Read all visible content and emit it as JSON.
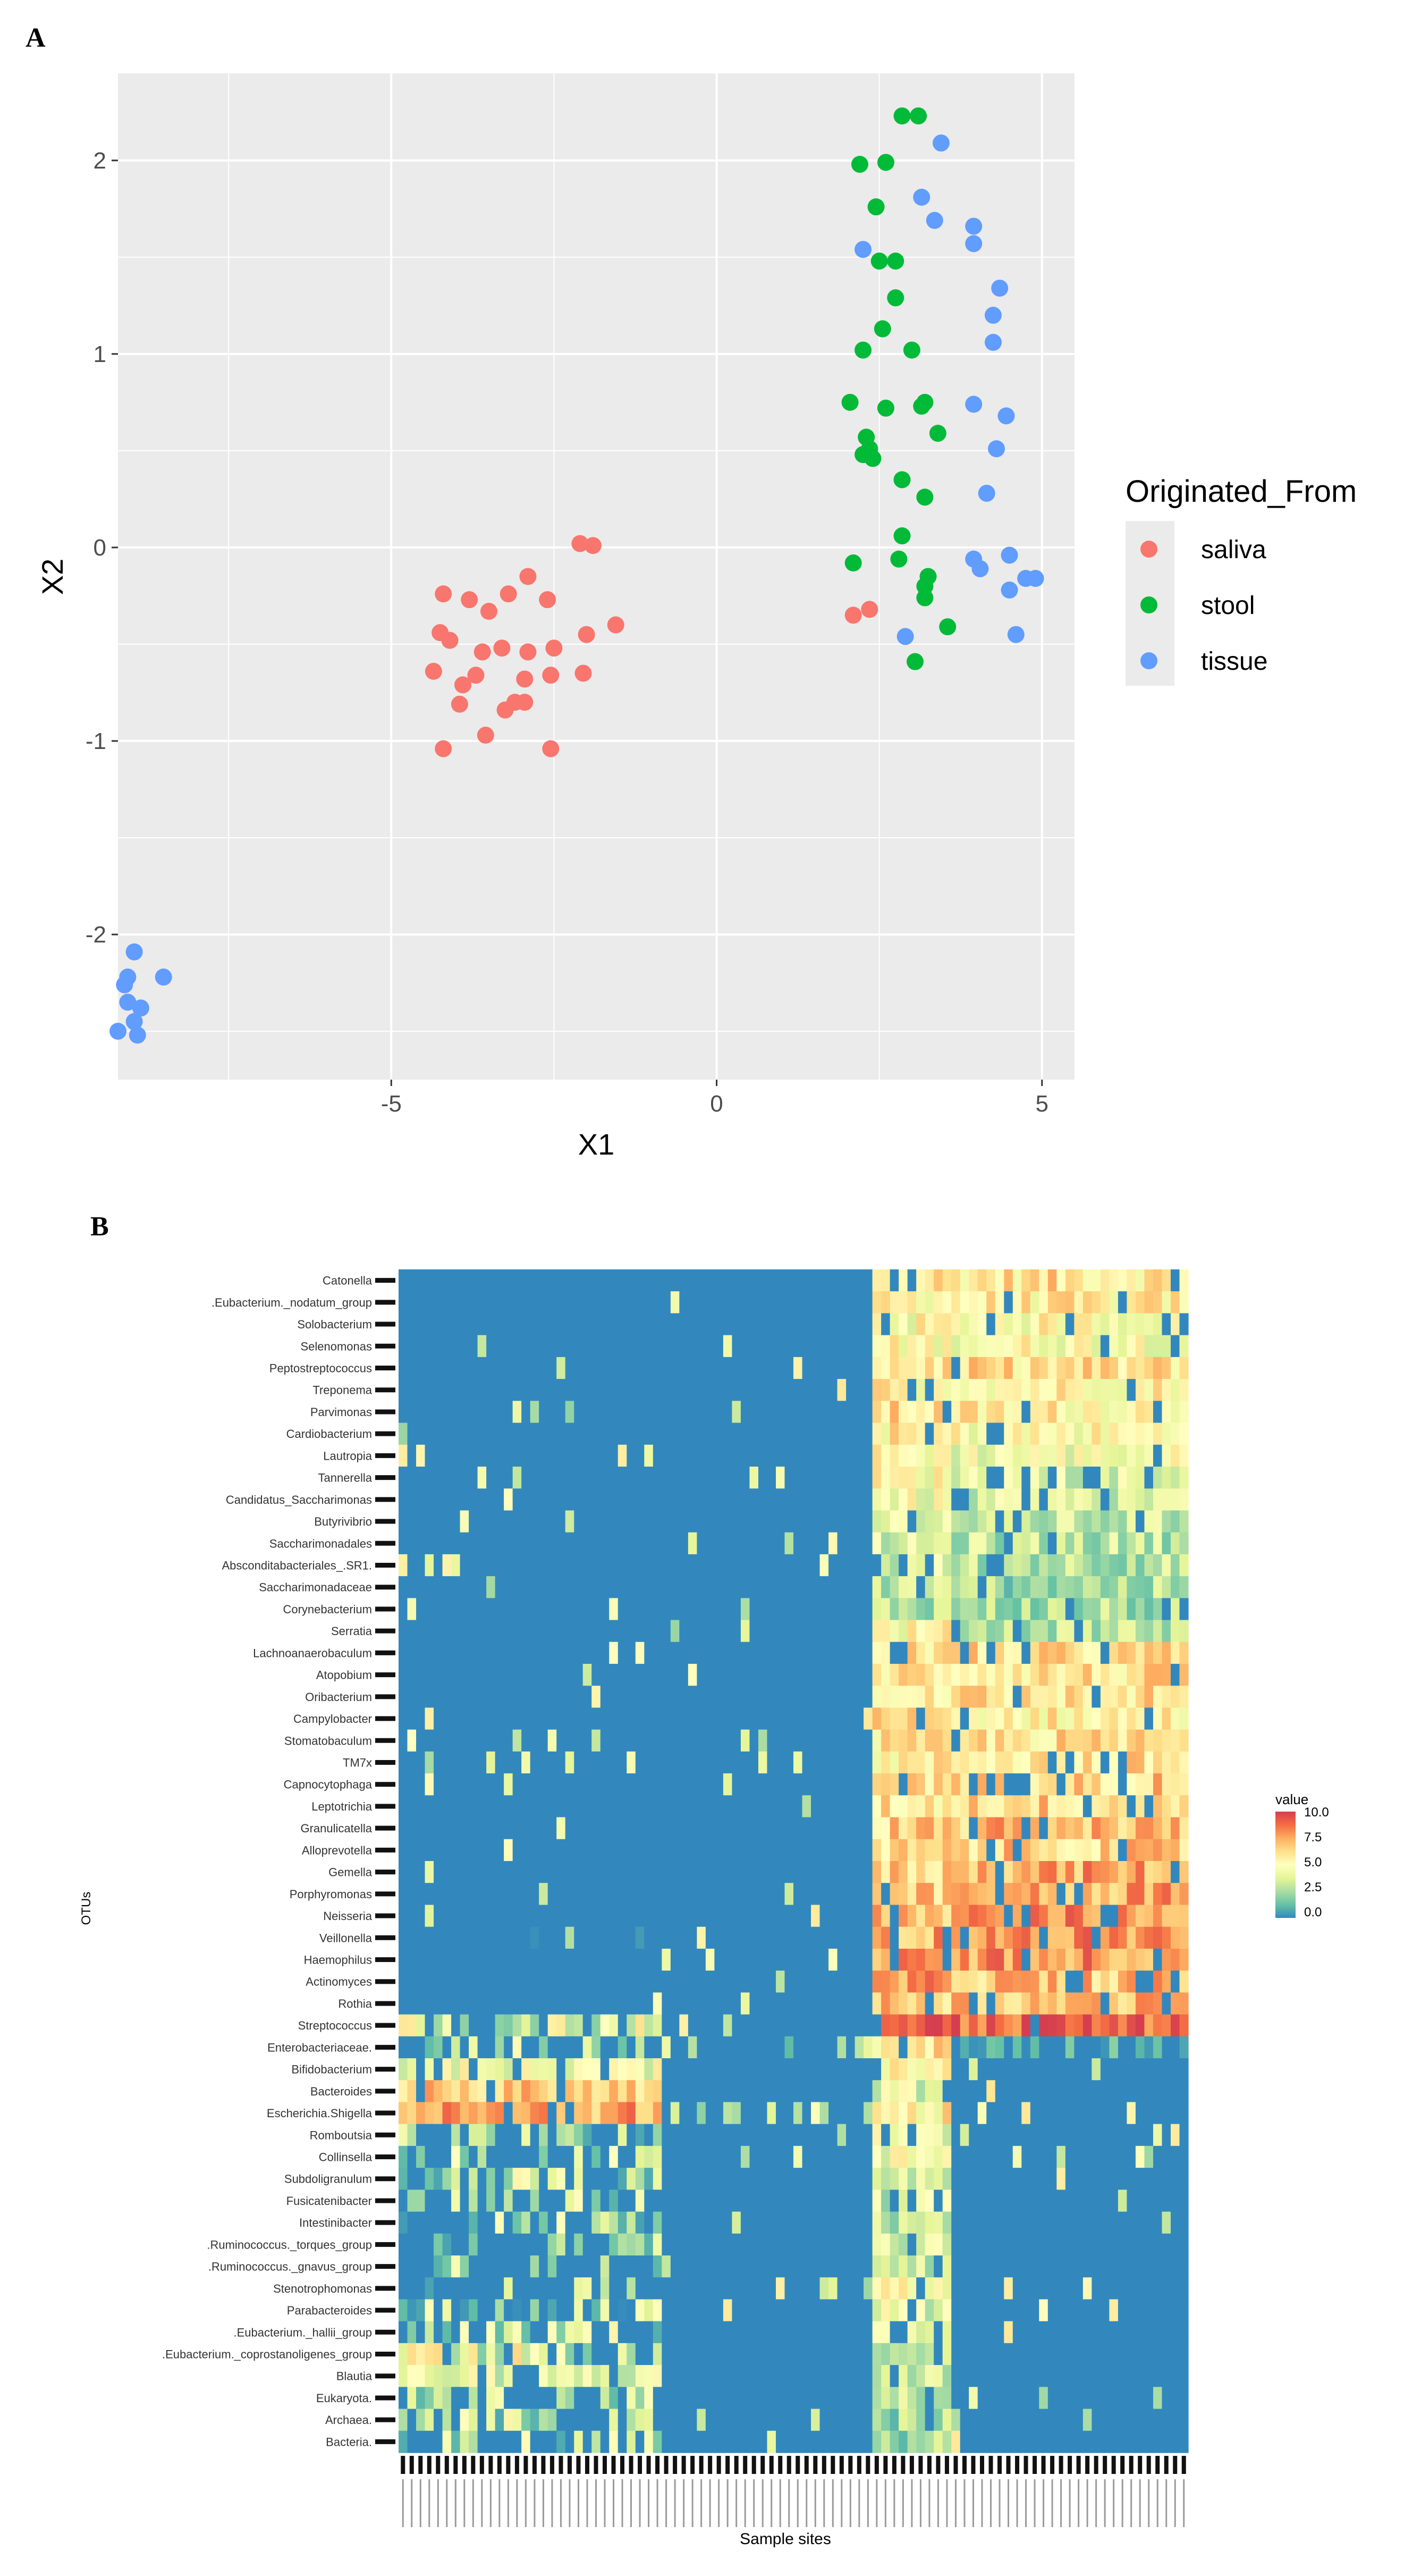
{
  "panels": {
    "a_label": "A",
    "b_label": "B"
  },
  "chart_data": [
    {
      "type": "scatter",
      "xlabel": "X1",
      "ylabel": "X2",
      "xlim": [
        -9.2,
        5.5
      ],
      "ylim": [
        -2.75,
        2.45
      ],
      "xticks": [
        -5,
        0,
        5
      ],
      "xtick_labels": [
        "-5",
        "0",
        "5"
      ],
      "yticks": [
        -2,
        -1,
        0,
        1,
        2
      ],
      "ytick_labels": [
        "-2",
        "-1",
        "0",
        "1",
        "2"
      ],
      "grid": true,
      "legend": {
        "title": "Originated_From",
        "position": "right"
      },
      "series": [
        {
          "name": "saliva",
          "color": "#F8766D",
          "points": [
            [
              -2.1,
              0.02
            ],
            [
              -1.9,
              0.01
            ],
            [
              -4.2,
              -0.24
            ],
            [
              -3.8,
              -0.27
            ],
            [
              -2.9,
              -0.15
            ],
            [
              -3.2,
              -0.24
            ],
            [
              -2.6,
              -0.27
            ],
            [
              -3.5,
              -0.33
            ],
            [
              -4.25,
              -0.44
            ],
            [
              -4.1,
              -0.48
            ],
            [
              -2.0,
              -0.45
            ],
            [
              -1.55,
              -0.4
            ],
            [
              -3.6,
              -0.54
            ],
            [
              -3.3,
              -0.52
            ],
            [
              -2.5,
              -0.52
            ],
            [
              -2.9,
              -0.54
            ],
            [
              -4.35,
              -0.64
            ],
            [
              -3.7,
              -0.66
            ],
            [
              -3.9,
              -0.71
            ],
            [
              -2.95,
              -0.68
            ],
            [
              -2.55,
              -0.66
            ],
            [
              -2.05,
              -0.65
            ],
            [
              -3.95,
              -0.81
            ],
            [
              -3.1,
              -0.8
            ],
            [
              -2.95,
              -0.8
            ],
            [
              -3.25,
              -0.84
            ],
            [
              -3.55,
              -0.97
            ],
            [
              -4.2,
              -1.04
            ],
            [
              -2.55,
              -1.04
            ],
            [
              2.1,
              -0.35
            ],
            [
              2.35,
              -0.32
            ]
          ]
        },
        {
          "name": "stool",
          "color": "#00BA38",
          "points": [
            [
              2.85,
              2.23
            ],
            [
              3.1,
              2.23
            ],
            [
              2.2,
              1.98
            ],
            [
              2.6,
              1.99
            ],
            [
              2.45,
              1.76
            ],
            [
              2.5,
              1.48
            ],
            [
              2.75,
              1.48
            ],
            [
              2.75,
              1.29
            ],
            [
              2.55,
              1.13
            ],
            [
              2.25,
              1.02
            ],
            [
              3.0,
              1.02
            ],
            [
              2.05,
              0.75
            ],
            [
              2.6,
              0.72
            ],
            [
              3.15,
              0.73
            ],
            [
              3.2,
              0.75
            ],
            [
              2.3,
              0.57
            ],
            [
              2.35,
              0.51
            ],
            [
              3.4,
              0.59
            ],
            [
              2.25,
              0.48
            ],
            [
              2.4,
              0.46
            ],
            [
              2.85,
              0.35
            ],
            [
              3.2,
              0.26
            ],
            [
              2.85,
              0.06
            ],
            [
              2.1,
              -0.08
            ],
            [
              2.8,
              -0.06
            ],
            [
              3.25,
              -0.15
            ],
            [
              3.2,
              -0.2
            ],
            [
              3.2,
              -0.26
            ],
            [
              3.55,
              -0.41
            ],
            [
              3.05,
              -0.59
            ]
          ]
        },
        {
          "name": "tissue",
          "color": "#619CFF",
          "points": [
            [
              3.45,
              2.09
            ],
            [
              3.15,
              1.81
            ],
            [
              3.35,
              1.69
            ],
            [
              3.95,
              1.66
            ],
            [
              3.95,
              1.57
            ],
            [
              4.35,
              1.34
            ],
            [
              4.25,
              1.2
            ],
            [
              4.25,
              1.06
            ],
            [
              2.25,
              1.54
            ],
            [
              3.95,
              0.74
            ],
            [
              4.45,
              0.68
            ],
            [
              4.3,
              0.51
            ],
            [
              4.15,
              0.28
            ],
            [
              3.95,
              -0.06
            ],
            [
              4.05,
              -0.11
            ],
            [
              4.5,
              -0.04
            ],
            [
              4.75,
              -0.16
            ],
            [
              4.9,
              -0.16
            ],
            [
              4.5,
              -0.22
            ],
            [
              4.6,
              -0.45
            ],
            [
              2.9,
              -0.46
            ],
            [
              -8.95,
              -2.09
            ],
            [
              -8.5,
              -2.22
            ],
            [
              -9.05,
              -2.22
            ],
            [
              -9.1,
              -2.26
            ],
            [
              -9.05,
              -2.35
            ],
            [
              -8.85,
              -2.38
            ],
            [
              -8.95,
              -2.45
            ],
            [
              -9.2,
              -2.5
            ],
            [
              -8.9,
              -2.52
            ]
          ]
        }
      ]
    },
    {
      "type": "heatmap",
      "xlabel": "Sample sites",
      "ylabel": "OTUs",
      "n_samples": 90,
      "sample_groups": [
        {
          "name": "stool",
          "columns": [
            0,
            54
          ]
        },
        {
          "name": "saliva",
          "columns": [
            54,
            63
          ]
        },
        {
          "name": "tissue",
          "columns": [
            63,
            90
          ]
        }
      ],
      "rows": [
        "Catonella",
        ".Eubacterium._nodatum_group",
        "Solobacterium",
        "Selenomonas",
        "Peptostreptococcus",
        "Treponema",
        "Parvimonas",
        "Cardiobacterium",
        "Lautropia",
        "Tannerella",
        "Candidatus_Saccharimonas",
        "Butyrivibrio",
        "Saccharimonadales",
        "Absconditabacteriales_.SR1.",
        "Saccharimonadaceae",
        "Corynebacterium",
        "Serratia",
        "Lachnoanaerobaculum",
        "Atopobium",
        "Oribacterium",
        "Campylobacter",
        "Stomatobaculum",
        "TM7x",
        "Capnocytophaga",
        "Leptotrichia",
        "Granulicatella",
        "Alloprevotella",
        "Gemella",
        "Porphyromonas",
        "Neisseria",
        "Veillonella",
        "Haemophilus",
        "Actinomyces",
        "Rothia",
        "Streptococcus",
        "Enterobacteriaceae.",
        "Bifidobacterium",
        "Bacteroides",
        "Escherichia.Shigella",
        "Romboutsia",
        "Collinsella",
        "Subdoligranulum",
        "Fusicatenibacter",
        "Intestinibacter",
        ".Ruminococcus._torques_group",
        ".Ruminococcus._gnavus_group",
        "Stenotrophomonas",
        "Parabacteroides",
        ".Eubacterium._hallii_group",
        ".Eubacterium._coprostanoligenes_group",
        "Blautia",
        "Eukaryota.",
        "Archaea.",
        "Bacteria."
      ],
      "row_profiles": [
        [
          0.3,
          0.2,
          6.0,
          6.0
        ],
        [
          0.3,
          0.2,
          5.5,
          5.5
        ],
        [
          0.3,
          0.2,
          5.0,
          5.0
        ],
        [
          0.3,
          0.2,
          5.0,
          5.0
        ],
        [
          0.3,
          0.2,
          6.0,
          6.0
        ],
        [
          0.3,
          0.2,
          5.5,
          5.5
        ],
        [
          0.3,
          0.2,
          6.0,
          5.5
        ],
        [
          0.3,
          0.2,
          5.5,
          5.0
        ],
        [
          0.3,
          0.2,
          5.0,
          4.5
        ],
        [
          0.3,
          0.2,
          5.0,
          4.0
        ],
        [
          0.3,
          0.2,
          4.5,
          3.5
        ],
        [
          0.3,
          0.2,
          4.0,
          3.0
        ],
        [
          0.3,
          0.2,
          3.5,
          3.0
        ],
        [
          0.3,
          0.2,
          3.5,
          3.0
        ],
        [
          0.3,
          0.2,
          3.0,
          2.5
        ],
        [
          0.3,
          0.2,
          3.0,
          2.5
        ],
        [
          0.3,
          0.4,
          5.0,
          3.0
        ],
        [
          0.3,
          0.2,
          6.0,
          6.0
        ],
        [
          0.3,
          0.2,
          6.0,
          6.0
        ],
        [
          0.3,
          0.2,
          6.0,
          6.0
        ],
        [
          0.3,
          0.2,
          6.0,
          5.5
        ],
        [
          0.3,
          0.2,
          5.5,
          6.0
        ],
        [
          0.3,
          0.2,
          5.5,
          6.0
        ],
        [
          0.3,
          0.2,
          6.0,
          6.5
        ],
        [
          0.3,
          0.2,
          6.0,
          6.5
        ],
        [
          0.3,
          0.2,
          6.5,
          7.0
        ],
        [
          0.3,
          0.2,
          6.0,
          6.5
        ],
        [
          0.3,
          0.2,
          6.5,
          7.5
        ],
        [
          0.3,
          0.2,
          6.5,
          7.5
        ],
        [
          0.3,
          0.2,
          7.0,
          8.0
        ],
        [
          0.6,
          0.2,
          7.5,
          8.0
        ],
        [
          0.5,
          0.2,
          7.5,
          8.0
        ],
        [
          0.4,
          0.2,
          7.5,
          7.0
        ],
        [
          0.3,
          0.2,
          7.0,
          7.0
        ],
        [
          3.0,
          0.4,
          9.5,
          9.0
        ],
        [
          2.5,
          1.5,
          6.0,
          0.6
        ],
        [
          4.5,
          0.2,
          5.0,
          0.2
        ],
        [
          6.5,
          0.2,
          4.0,
          0.2
        ],
        [
          7.5,
          1.5,
          5.5,
          0.2
        ],
        [
          2.0,
          0.2,
          4.0,
          0.2
        ],
        [
          2.0,
          0.2,
          4.5,
          0.2
        ],
        [
          2.0,
          0.2,
          4.0,
          0.2
        ],
        [
          2.0,
          0.2,
          3.5,
          0.2
        ],
        [
          1.5,
          0.2,
          3.0,
          0.2
        ],
        [
          2.0,
          0.2,
          3.5,
          0.2
        ],
        [
          2.0,
          0.2,
          3.0,
          0.2
        ],
        [
          1.0,
          0.2,
          5.0,
          0.3
        ],
        [
          1.5,
          0.2,
          4.0,
          0.2
        ],
        [
          2.0,
          0.2,
          3.5,
          0.2
        ],
        [
          3.0,
          0.2,
          3.5,
          0.2
        ],
        [
          4.0,
          0.5,
          3.5,
          0.2
        ],
        [
          2.0,
          0.2,
          3.0,
          0.2
        ],
        [
          2.0,
          0.2,
          2.5,
          0.2
        ],
        [
          2.0,
          0.2,
          2.5,
          0.2
        ]
      ],
      "legend": {
        "title": "value",
        "ticks": [
          "10.0",
          "7.5",
          "5.0",
          "2.5",
          "0.0"
        ],
        "position": "right"
      },
      "colorscale": [
        "#3288BD",
        "#66C2A5",
        "#ABDDA4",
        "#E6F598",
        "#FFFFBF",
        "#FEE08B",
        "#FDAE61",
        "#F46D43",
        "#D53E4F"
      ]
    }
  ]
}
